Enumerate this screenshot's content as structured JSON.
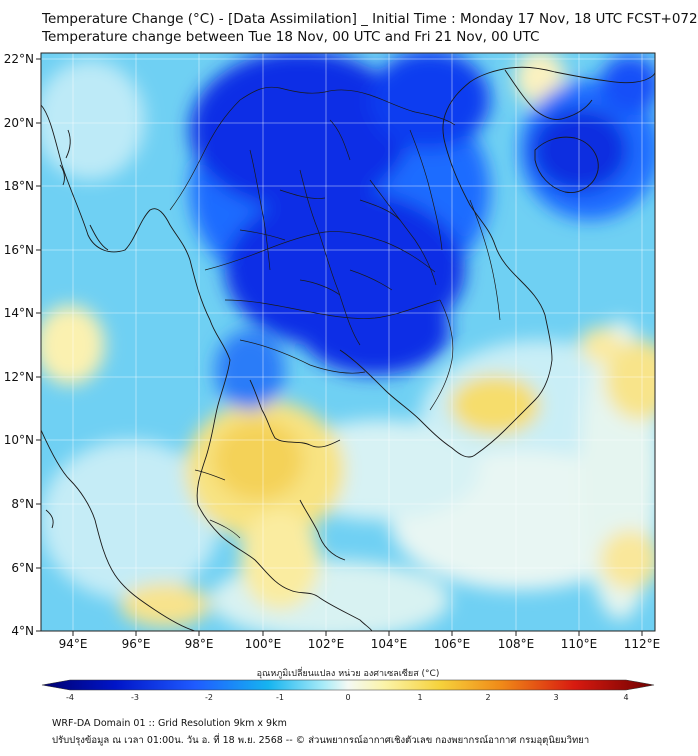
{
  "header": {
    "title_line1": "Temperature Change (°C) - [Data Assimilation] _ Initial Time : Monday 17 Nov, 18 UTC FCST+072",
    "title_line2": "Temperature change between Tue 18 Nov, 00 UTC and Fri 21 Nov, 00 UTC"
  },
  "map": {
    "lat_labels": [
      "22°N",
      "20°N",
      "18°N",
      "16°N",
      "14°N",
      "12°N",
      "10°N",
      "8°N",
      "6°N",
      "4°N"
    ],
    "lon_labels": [
      "94°E",
      "96°E",
      "98°E",
      "100°E",
      "102°E",
      "104°E",
      "106°E",
      "108°E",
      "110°E",
      "112°E"
    ],
    "colors": {
      "strong_cool": "#0a1fd8",
      "cool": "#1e90ff",
      "light_cool": "#9fe0f5",
      "neutral": "#f2f8f2",
      "warm": "#f5e27a",
      "coast": "#1a1a1a"
    }
  },
  "colorbar": {
    "title": "อุณหภูมิเปลี่ยนแปลง หน่วย องศาเซลเซียส (°C)",
    "ticks": [
      "-4",
      "-3",
      "-2",
      "-1",
      "0",
      "1",
      "2",
      "3",
      "4"
    ],
    "range": [
      -4,
      4
    ]
  },
  "footer": {
    "line1": "WRF-DA Domain 01 :: Grid Resolution 9km x 9km",
    "line2": "ปรับปรุงข้อมูล ณ เวลา 01:00น. วัน อ. ที่ 18 พ.ย. 2568 -- © ส่วนพยากรณ์อากาศเชิงตัวเลข กองพยากรณ์อากาศ กรมอุตุนิยมวิทยา"
  }
}
